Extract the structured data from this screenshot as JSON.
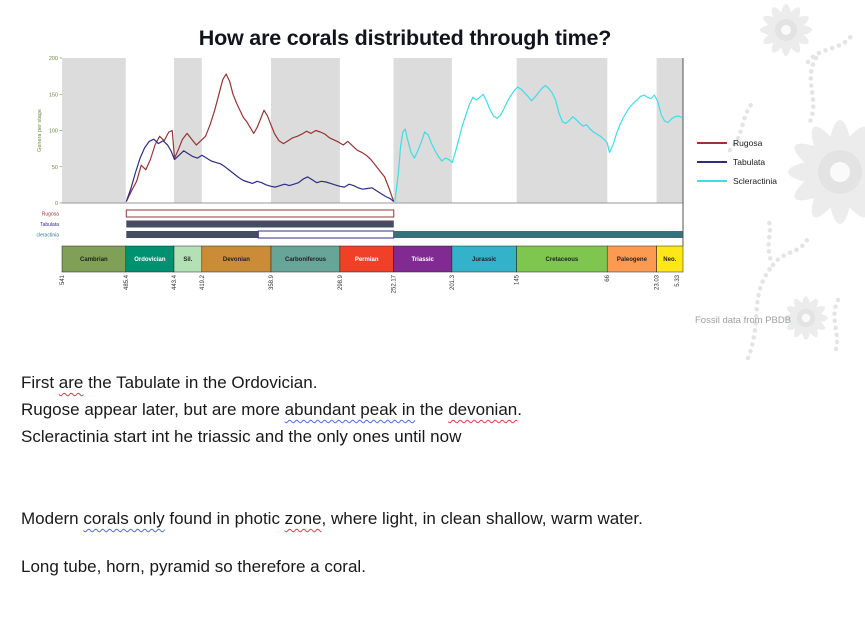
{
  "title": "How are corals distributed through time?",
  "chart_data": {
    "type": "line",
    "ylabel": "Genera per stage",
    "ylim": [
      0,
      200
    ],
    "yticks": [
      0,
      50,
      100,
      150,
      200
    ],
    "xlim": [
      541,
      0
    ],
    "x_unit": "Ma",
    "grid": "alternating period bands",
    "legend_position": "right",
    "axis_color": "#6e8b3d",
    "band_color": "#dcdcdc",
    "attribution": "Fossil data from PBDB",
    "series": [
      {
        "name": "Rugosa",
        "color": "#943634",
        "points": [
          [
            485,
            2
          ],
          [
            480,
            18
          ],
          [
            476,
            30
          ],
          [
            472,
            52
          ],
          [
            468,
            46
          ],
          [
            464,
            60
          ],
          [
            460,
            80
          ],
          [
            456,
            92
          ],
          [
            452,
            86
          ],
          [
            448,
            98
          ],
          [
            445,
            100
          ],
          [
            443,
            62
          ],
          [
            440,
            72
          ],
          [
            436,
            88
          ],
          [
            432,
            96
          ],
          [
            428,
            88
          ],
          [
            424,
            80
          ],
          [
            420,
            86
          ],
          [
            416,
            92
          ],
          [
            412,
            108
          ],
          [
            408,
            128
          ],
          [
            404,
            152
          ],
          [
            401,
            170
          ],
          [
            398,
            178
          ],
          [
            395,
            168
          ],
          [
            392,
            150
          ],
          [
            389,
            138
          ],
          [
            386,
            128
          ],
          [
            383,
            118
          ],
          [
            380,
            112
          ],
          [
            377,
            104
          ],
          [
            374,
            96
          ],
          [
            371,
            104
          ],
          [
            368,
            116
          ],
          [
            365,
            128
          ],
          [
            362,
            120
          ],
          [
            359,
            108
          ],
          [
            356,
            96
          ],
          [
            352,
            86
          ],
          [
            348,
            82
          ],
          [
            344,
            86
          ],
          [
            340,
            90
          ],
          [
            336,
            92
          ],
          [
            332,
            95
          ],
          [
            328,
            99
          ],
          [
            324,
            96
          ],
          [
            320,
            100
          ],
          [
            316,
            98
          ],
          [
            312,
            95
          ],
          [
            308,
            90
          ],
          [
            304,
            87
          ],
          [
            300,
            84
          ],
          [
            296,
            80
          ],
          [
            292,
            85
          ],
          [
            288,
            79
          ],
          [
            284,
            73
          ],
          [
            280,
            70
          ],
          [
            276,
            66
          ],
          [
            272,
            60
          ],
          [
            268,
            52
          ],
          [
            264,
            44
          ],
          [
            260,
            36
          ],
          [
            256,
            20
          ],
          [
            252,
            2
          ]
        ]
      },
      {
        "name": "Tabulata",
        "color": "#2d2e83",
        "points": [
          [
            485,
            2
          ],
          [
            481,
            20
          ],
          [
            477,
            42
          ],
          [
            473,
            62
          ],
          [
            469,
            76
          ],
          [
            465,
            85
          ],
          [
            461,
            88
          ],
          [
            457,
            82
          ],
          [
            453,
            86
          ],
          [
            449,
            80
          ],
          [
            446,
            72
          ],
          [
            443,
            60
          ],
          [
            439,
            66
          ],
          [
            435,
            72
          ],
          [
            431,
            68
          ],
          [
            427,
            64
          ],
          [
            423,
            62
          ],
          [
            419,
            66
          ],
          [
            415,
            62
          ],
          [
            411,
            58
          ],
          [
            407,
            56
          ],
          [
            403,
            54
          ],
          [
            399,
            50
          ],
          [
            395,
            45
          ],
          [
            391,
            40
          ],
          [
            387,
            35
          ],
          [
            383,
            31
          ],
          [
            379,
            29
          ],
          [
            375,
            27
          ],
          [
            371,
            30
          ],
          [
            367,
            28
          ],
          [
            363,
            25
          ],
          [
            359,
            23
          ],
          [
            355,
            22
          ],
          [
            351,
            24
          ],
          [
            347,
            26
          ],
          [
            343,
            24
          ],
          [
            339,
            26
          ],
          [
            335,
            28
          ],
          [
            331,
            33
          ],
          [
            327,
            36
          ],
          [
            323,
            32
          ],
          [
            319,
            28
          ],
          [
            315,
            30
          ],
          [
            311,
            29
          ],
          [
            307,
            27
          ],
          [
            303,
            25
          ],
          [
            299,
            23
          ],
          [
            295,
            22
          ],
          [
            291,
            26
          ],
          [
            287,
            24
          ],
          [
            283,
            21
          ],
          [
            279,
            19
          ],
          [
            275,
            20
          ],
          [
            271,
            21
          ],
          [
            267,
            17
          ],
          [
            263,
            13
          ],
          [
            259,
            9
          ],
          [
            255,
            6
          ],
          [
            252,
            2
          ]
        ]
      },
      {
        "name": "Scleractinia",
        "color": "#3ddde8",
        "points": [
          [
            251,
            2
          ],
          [
            248,
            40
          ],
          [
            246,
            78
          ],
          [
            244,
            98
          ],
          [
            242,
            102
          ],
          [
            240,
            88
          ],
          [
            237,
            70
          ],
          [
            234,
            62
          ],
          [
            231,
            72
          ],
          [
            228,
            84
          ],
          [
            225,
            98
          ],
          [
            222,
            94
          ],
          [
            219,
            82
          ],
          [
            216,
            72
          ],
          [
            213,
            64
          ],
          [
            210,
            58
          ],
          [
            207,
            62
          ],
          [
            204,
            60
          ],
          [
            201,
            56
          ],
          [
            198,
            72
          ],
          [
            195,
            90
          ],
          [
            192,
            108
          ],
          [
            189,
            122
          ],
          [
            186,
            136
          ],
          [
            183,
            146
          ],
          [
            180,
            142
          ],
          [
            177,
            146
          ],
          [
            174,
            150
          ],
          [
            171,
            140
          ],
          [
            168,
            128
          ],
          [
            165,
            120
          ],
          [
            162,
            117
          ],
          [
            159,
            121
          ],
          [
            156,
            130
          ],
          [
            153,
            140
          ],
          [
            150,
            148
          ],
          [
            147,
            155
          ],
          [
            144,
            160
          ],
          [
            141,
            157
          ],
          [
            138,
            152
          ],
          [
            135,
            147
          ],
          [
            132,
            141
          ],
          [
            129,
            146
          ],
          [
            126,
            152
          ],
          [
            123,
            158
          ],
          [
            120,
            162
          ],
          [
            117,
            158
          ],
          [
            114,
            152
          ],
          [
            111,
            142
          ],
          [
            108,
            124
          ],
          [
            105,
            112
          ],
          [
            102,
            110
          ],
          [
            99,
            114
          ],
          [
            96,
            119
          ],
          [
            93,
            115
          ],
          [
            90,
            110
          ],
          [
            87,
            106
          ],
          [
            84,
            108
          ],
          [
            81,
            102
          ],
          [
            78,
            98
          ],
          [
            75,
            95
          ],
          [
            72,
            92
          ],
          [
            69,
            88
          ],
          [
            66,
            83
          ],
          [
            64,
            70
          ],
          [
            61,
            80
          ],
          [
            58,
            95
          ],
          [
            55,
            108
          ],
          [
            52,
            118
          ],
          [
            49,
            126
          ],
          [
            46,
            133
          ],
          [
            43,
            138
          ],
          [
            40,
            142
          ],
          [
            37,
            147
          ],
          [
            34,
            149
          ],
          [
            31,
            146
          ],
          [
            28,
            144
          ],
          [
            25,
            149
          ],
          [
            22,
            140
          ],
          [
            19,
            122
          ],
          [
            16,
            113
          ],
          [
            13,
            111
          ],
          [
            10,
            116
          ],
          [
            7,
            119
          ],
          [
            4,
            120
          ],
          [
            1,
            118
          ]
        ]
      }
    ],
    "range_bars": [
      {
        "label": "Rugosa",
        "label_color": "#943634",
        "segments": [
          {
            "start": 485,
            "end": 252,
            "style": "outline",
            "color": "#943634"
          }
        ]
      },
      {
        "label": "Tabulata",
        "label_color": "#2d2e83",
        "segments": [
          {
            "start": 485,
            "end": 252,
            "style": "solid",
            "color": "#454d63"
          }
        ]
      },
      {
        "label": "cleractinia",
        "label_color": "#2a7d8c",
        "segments": [
          {
            "start": 485,
            "end": 370,
            "style": "solid",
            "color": "#454d63"
          },
          {
            "start": 370,
            "end": 252,
            "style": "outline",
            "color": "#2d2e83"
          },
          {
            "start": 252,
            "end": 0,
            "style": "solid",
            "color": "#3a6f7d"
          }
        ]
      }
    ],
    "periods": [
      {
        "name": "Cambrian",
        "start": 541,
        "end": 485.4,
        "color": "#7FA056",
        "text_color": "#1f1f1f"
      },
      {
        "name": "Ordovician",
        "start": 485.4,
        "end": 443.4,
        "color": "#009270",
        "text_color": "#ffffff"
      },
      {
        "name": "Sil.",
        "start": 443.4,
        "end": 419.2,
        "color": "#B3E1B6",
        "text_color": "#1f1f1f"
      },
      {
        "name": "Devonian",
        "start": 419.2,
        "end": 358.9,
        "color": "#CB8C37",
        "text_color": "#1f1f1f"
      },
      {
        "name": "Carboniferous",
        "start": 358.9,
        "end": 298.9,
        "color": "#67A599",
        "text_color": "#1f1f1f"
      },
      {
        "name": "Permian",
        "start": 298.9,
        "end": 252.17,
        "color": "#F04028",
        "text_color": "#ffffff"
      },
      {
        "name": "Triassic",
        "start": 252.17,
        "end": 201.3,
        "color": "#812B92",
        "text_color": "#ffffff"
      },
      {
        "name": "Jurassic",
        "start": 201.3,
        "end": 145,
        "color": "#34B2C9",
        "text_color": "#1f1f1f"
      },
      {
        "name": "Cretaceous",
        "start": 145,
        "end": 66,
        "color": "#7FC64E",
        "text_color": "#1f1f1f"
      },
      {
        "name": "Paleogene",
        "start": 66,
        "end": 23.03,
        "color": "#FD9A52",
        "text_color": "#1f1f1f"
      },
      {
        "name": "Neo.",
        "start": 23.03,
        "end": 0,
        "color": "#FFE619",
        "text_color": "#1f1f1f"
      }
    ],
    "boundary_values": [
      541,
      485.4,
      443.4,
      419.2,
      358.9,
      298.9,
      252.17,
      201.3,
      145,
      66,
      23.03,
      5.33
    ],
    "boundary_labels": [
      "541",
      "485.4",
      "443.4",
      "419.2",
      "358.9",
      "298.9",
      "252.17",
      "201.3",
      "145",
      "66",
      "23.03",
      "5.33"
    ]
  },
  "notes": {
    "l1": {
      "a": "First ",
      "b": "are",
      "c": " the Tabulate in the Ordovician."
    },
    "l2": {
      "a": "Rugose appear later, but are more ",
      "b": "abundant peak in",
      "c": " the ",
      "d": "devonian",
      "e": "."
    },
    "l3": "Scleractinia start int he triassic and the only ones until now",
    "l4": {
      "a": "Modern ",
      "b": "corals only",
      "c": " found in photic ",
      "d": "zone",
      "e": ", where light, in clean shallow, warm water."
    },
    "l5": "Long tube, horn, pyramid so therefore a coral."
  }
}
